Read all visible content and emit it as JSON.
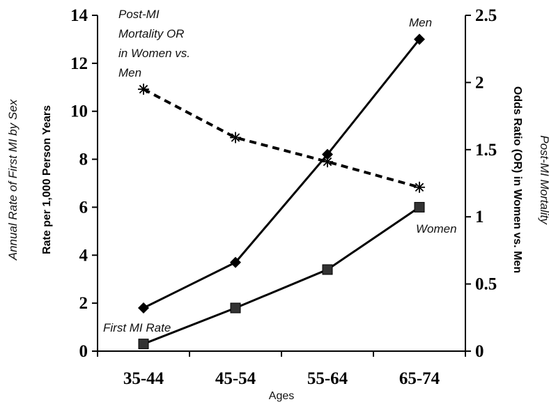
{
  "chart_data": {
    "type": "line",
    "categories": [
      "35-44",
      "45-54",
      "55-64",
      "65-74"
    ],
    "xlabel": "Ages",
    "y_left": {
      "label": "Rate per 1,000 Person Years",
      "outer_label": "Annual Rate of First MI by Sex",
      "range": [
        0,
        14
      ],
      "ticks": [
        "0",
        "2",
        "4",
        "6",
        "8",
        "10",
        "12",
        "14"
      ]
    },
    "y_right": {
      "label": "Odds Ratio (OR) in Women vs. Men",
      "outer_label": "Post-MI Mortality",
      "range": [
        0,
        2.5
      ],
      "ticks": [
        "0",
        "0.5",
        "1",
        "1.5",
        "2",
        "2.5"
      ]
    },
    "series": [
      {
        "name": "Men",
        "axis": "left",
        "marker": "diamond",
        "line": "solid",
        "values": [
          1.8,
          3.7,
          8.2,
          13.0
        ]
      },
      {
        "name": "Women",
        "axis": "left",
        "marker": "square",
        "line": "solid",
        "values": [
          0.3,
          1.8,
          3.4,
          6.0
        ]
      },
      {
        "name": "Post-MI Mortality OR in Women vs. Men",
        "axis": "right",
        "marker": "asterisk",
        "line": "dashed",
        "values": [
          1.95,
          1.59,
          1.41,
          1.22
        ]
      }
    ],
    "annotations": {
      "men": "Men",
      "women": "Women",
      "first_mi": "First MI Rate",
      "or_lines": [
        "Post-MI",
        "Mortality OR",
        "in Women vs.",
        "Men"
      ]
    },
    "grid": false
  }
}
